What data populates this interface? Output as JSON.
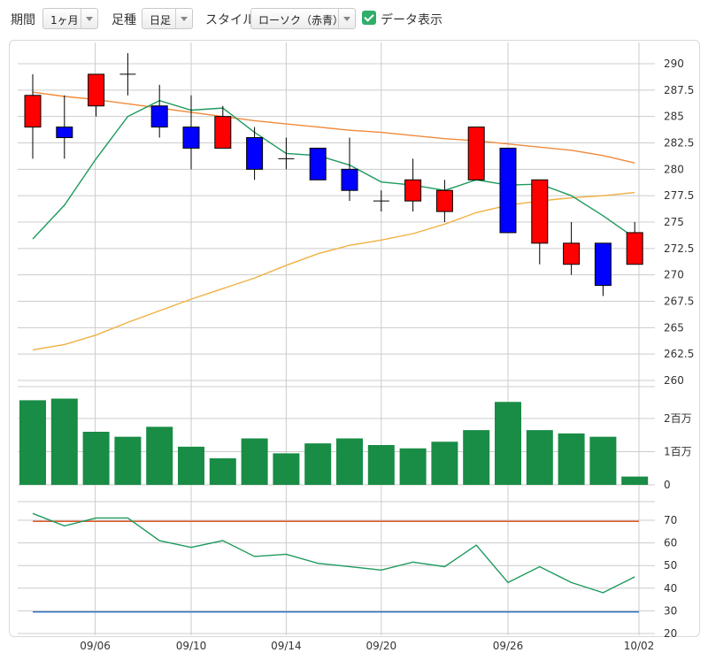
{
  "toolbar": {
    "period_label": "期間",
    "period_value": "1ヶ月",
    "candle_label": "足種",
    "candle_value": "日足",
    "style_label": "スタイル",
    "style_value": "ローソク（赤青）",
    "show_data_label": "データ表示",
    "show_data_checked": true
  },
  "colors": {
    "up": "#ff0000",
    "down": "#0000ff",
    "volume": "#198c45",
    "ma_short": "#1e9a5c",
    "ma_mid": "#f08a3c",
    "ma_long": "#f0b040",
    "rsi": "#1e9a5c",
    "rsi_upper": "#e05a2a",
    "rsi_lower": "#2a6ebf",
    "grid": "#cccccc"
  },
  "chart_data": [
    {
      "type": "candlestick",
      "x_ticks": [
        "09/06",
        "09/10",
        "09/14",
        "09/20",
        "09/26",
        "10/02"
      ],
      "x_tick_index": [
        2,
        5,
        8,
        11,
        15,
        19
      ],
      "y_ticks": [
        "290",
        "287.5",
        "285",
        "282.5",
        "280",
        "277.5",
        "275",
        "272.5",
        "270",
        "267.5",
        "265",
        "262.5",
        "260"
      ],
      "ylim": [
        260,
        291
      ],
      "candles": [
        {
          "o": 284,
          "h": 289,
          "l": 281,
          "c": 287
        },
        {
          "o": 284,
          "h": 287,
          "l": 281,
          "c": 283
        },
        {
          "o": 286,
          "h": 289,
          "l": 285,
          "c": 289
        },
        {
          "o": 289,
          "h": 291,
          "l": 287,
          "c": 289
        },
        {
          "o": 286,
          "h": 288,
          "l": 283,
          "c": 284
        },
        {
          "o": 284,
          "h": 287,
          "l": 280,
          "c": 282
        },
        {
          "o": 282,
          "h": 286,
          "l": 282,
          "c": 285
        },
        {
          "o": 283,
          "h": 284,
          "l": 279,
          "c": 280
        },
        {
          "o": 281,
          "h": 283,
          "l": 280,
          "c": 281
        },
        {
          "o": 282,
          "h": 282,
          "l": 279,
          "c": 279
        },
        {
          "o": 280,
          "h": 283,
          "l": 277,
          "c": 278
        },
        {
          "o": 277,
          "h": 278,
          "l": 276,
          "c": 277
        },
        {
          "o": 277,
          "h": 281,
          "l": 276,
          "c": 279
        },
        {
          "o": 276,
          "h": 279,
          "l": 275,
          "c": 278
        },
        {
          "o": 279,
          "h": 284,
          "l": 279,
          "c": 284
        },
        {
          "o": 282,
          "h": 282,
          "l": 274,
          "c": 274
        },
        {
          "o": 273,
          "h": 279,
          "l": 271,
          "c": 279
        },
        {
          "o": 271,
          "h": 275,
          "l": 270,
          "c": 273
        },
        {
          "o": 273,
          "h": 273,
          "l": 268,
          "c": 269
        },
        {
          "o": 271,
          "h": 275,
          "l": 271,
          "c": 274
        }
      ],
      "ma_short": [
        273.4,
        276.6,
        281,
        285,
        286.5,
        285.6,
        285.8,
        283.5,
        281.5,
        281.3,
        280.4,
        278.8,
        278.5,
        278,
        279,
        278.5,
        278.6,
        277.5,
        275.6,
        273.5
      ],
      "ma_mid": [
        287.3,
        286.9,
        286.6,
        286.2,
        285.8,
        285.4,
        285.0,
        284.6,
        284.3,
        284.0,
        283.7,
        283.5,
        283.2,
        282.9,
        282.7,
        282.4,
        282.1,
        281.8,
        281.3,
        280.6
      ],
      "ma_long": [
        262.9,
        263.4,
        264.3,
        265.5,
        266.6,
        267.7,
        268.7,
        269.7,
        270.9,
        272.0,
        272.8,
        273.3,
        273.9,
        274.8,
        275.9,
        276.6,
        277.0,
        277.3,
        277.5,
        277.8
      ]
    },
    {
      "type": "bar",
      "name": "volume",
      "y_ticks": [
        "2百万",
        "1百万",
        "0"
      ],
      "ylim": [
        0,
        2800000
      ],
      "values": [
        2550000,
        2600000,
        1600000,
        1450000,
        1750000,
        1150000,
        800000,
        1400000,
        950000,
        1250000,
        1400000,
        1200000,
        1100000,
        1300000,
        1650000,
        2500000,
        1650000,
        1550000,
        1450000,
        250000
      ]
    },
    {
      "type": "line",
      "name": "rsi",
      "y_ticks": [
        "70",
        "60",
        "50",
        "40",
        "30",
        "20"
      ],
      "ylim": [
        20,
        75
      ],
      "values": [
        73,
        67.5,
        71,
        71,
        61,
        58,
        61,
        54,
        55,
        51,
        49.5,
        48,
        51.5,
        49.5,
        59,
        42.5,
        49.5,
        42.5,
        38,
        45
      ],
      "upper": 69.5,
      "lower": 29.5
    }
  ]
}
